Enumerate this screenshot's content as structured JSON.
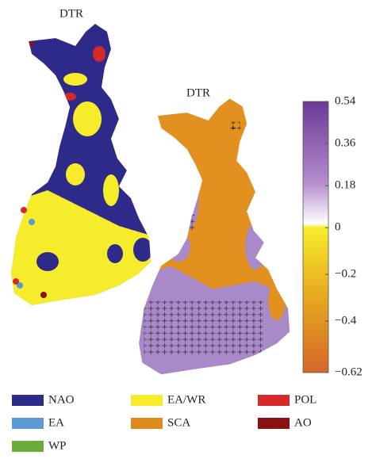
{
  "maps": [
    {
      "title": "DTR"
    },
    {
      "title": "DTR"
    }
  ],
  "colorbar": {
    "clim": [
      -0.62,
      0.54
    ],
    "ticks": [
      0.54,
      0.36,
      0.18,
      0,
      {
        "value": -0.2,
        "label": "−0.2"
      },
      {
        "value": -0.4,
        "label": "−0.4"
      },
      {
        "value": -0.62,
        "label": "−0.62"
      }
    ]
  },
  "legend": [
    {
      "name": "NAO",
      "color": "#2e2a8a"
    },
    {
      "name": "EA",
      "color": "#5b9bd5"
    },
    {
      "name": "WP",
      "color": "#6aad3a"
    },
    {
      "name": "EA/WR",
      "color": "#f7ec2c"
    },
    {
      "name": "SCA",
      "color": "#e08a1e"
    },
    {
      "name": "POL",
      "color": "#d42a2a"
    },
    {
      "name": "AO",
      "color": "#8b1010"
    }
  ]
}
